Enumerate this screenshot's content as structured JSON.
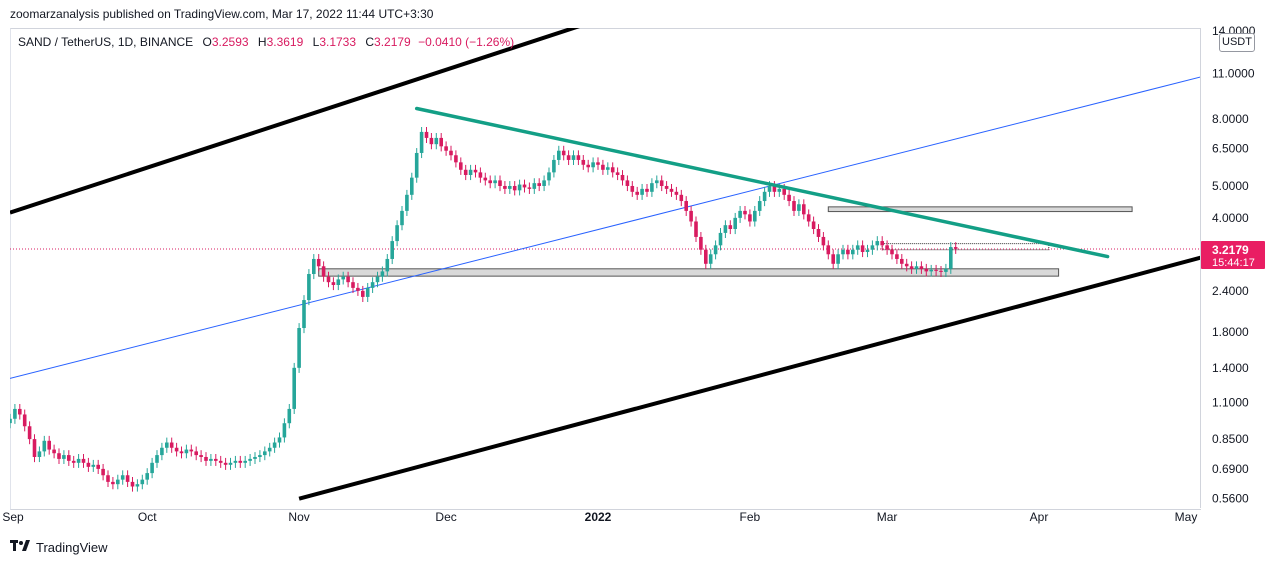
{
  "header": {
    "published_by": "zoomarzanalysis published on TradingView.com, Mar 17, 2022 11:44 UTC+3:30"
  },
  "legend": {
    "symbol": "SAND / TetherUS, 1D, BINANCE",
    "open_label": "O",
    "open": "3.2593",
    "high_label": "H",
    "high": "3.3619",
    "low_label": "L",
    "low": "3.1733",
    "close_label": "C",
    "close": "3.2179",
    "change": "−0.0410 (−1.26%)"
  },
  "price_axis": {
    "currency": "USDT",
    "top_partial_label": "14.0000",
    "ticks": [
      "11.0000",
      "8.0000",
      "6.5000",
      "5.0000",
      "4.0000",
      "2.4000",
      "1.8000",
      "1.4000",
      "1.1000",
      "0.8500",
      "0.6900",
      "0.5600"
    ],
    "current_price": "3.2179",
    "countdown": "15:44:17"
  },
  "footer": {
    "brand": "TradingView"
  },
  "colors": {
    "up": "#26a69a",
    "down": "#d81b60",
    "trendline": "#139f86",
    "channel": "#000000",
    "blue_line": "#2962ff",
    "zone_fill": "#d9d9d9",
    "price_badge": "#e91e63"
  },
  "chart_data": {
    "type": "candlestick",
    "scale": "log",
    "x_ticks": [
      "Sep",
      "Oct",
      "Nov",
      "Dec",
      "2022",
      "Feb",
      "Mar",
      "Apr",
      "May"
    ],
    "y_ticks": [
      11.0,
      8.0,
      6.5,
      5.0,
      4.0,
      2.4,
      1.8,
      1.4,
      1.1,
      0.85,
      0.69,
      0.56
    ],
    "ylim": [
      0.545,
      14.5
    ],
    "series": [
      {
        "start": "2021-09-03",
        "closes": [
          0.98,
          1.05,
          1.01,
          0.93,
          0.85,
          0.75,
          0.78,
          0.84,
          0.79,
          0.77,
          0.74,
          0.76,
          0.73,
          0.72,
          0.74,
          0.72,
          0.7,
          0.71,
          0.69,
          0.66,
          0.63,
          0.62,
          0.64,
          0.66,
          0.63,
          0.61,
          0.62,
          0.64,
          0.67,
          0.72,
          0.76,
          0.8,
          0.83,
          0.8,
          0.78,
          0.77,
          0.79,
          0.78,
          0.76,
          0.75,
          0.73,
          0.74,
          0.73,
          0.72,
          0.71,
          0.72,
          0.73,
          0.72,
          0.73,
          0.74,
          0.75,
          0.76,
          0.78,
          0.8,
          0.83,
          0.86,
          0.95,
          1.05,
          1.4,
          1.85,
          2.25,
          2.7,
          3.0,
          2.85,
          2.65,
          2.55,
          2.5,
          2.6,
          2.65,
          2.55,
          2.45,
          2.4,
          2.3,
          2.45,
          2.55,
          2.65,
          2.75,
          3.0,
          3.4,
          3.8,
          4.2,
          4.7,
          5.3,
          6.3,
          7.3,
          7.0,
          6.7,
          7.0,
          6.6,
          6.4,
          6.2,
          5.9,
          5.6,
          5.4,
          5.6,
          5.5,
          5.3,
          5.2,
          5.1,
          5.2,
          5.0,
          4.9,
          5.0,
          4.85,
          5.05,
          4.95,
          4.9,
          5.1,
          5.0,
          5.2,
          5.5,
          6.0,
          6.4,
          6.2,
          6.0,
          6.2,
          6.0,
          5.8,
          5.7,
          5.9,
          5.8,
          5.6,
          5.7,
          5.5,
          5.4,
          5.2,
          5.0,
          4.8,
          4.7,
          4.9,
          4.8,
          5.1,
          5.2,
          5.0,
          4.9,
          4.8,
          4.7,
          4.5,
          4.2,
          3.9,
          3.5,
          3.2,
          2.9,
          3.1,
          3.3,
          3.6,
          3.8,
          3.7,
          4.0,
          4.2,
          4.1,
          3.9,
          4.2,
          4.5,
          4.8,
          5.0,
          4.8,
          4.9,
          4.7,
          4.5,
          4.2,
          4.4,
          4.1,
          3.9,
          3.7,
          3.5,
          3.3,
          3.1,
          2.9,
          3.1,
          3.2,
          3.1,
          3.2,
          3.3,
          3.15,
          3.2,
          3.3,
          3.4,
          3.3,
          3.2,
          3.1,
          3.0,
          2.9,
          2.85,
          2.8,
          2.85,
          2.8,
          2.75,
          2.78,
          2.76,
          2.74,
          2.8,
          3.26,
          3.22
        ]
      }
    ],
    "annotations": {
      "channel_upper": [
        [
          "2021-09-03",
          4.15
        ],
        [
          "2021-12-31",
          15.8
        ]
      ],
      "channel_lower": [
        [
          "2021-11-01",
          0.56
        ],
        [
          "2022-05-15",
          3.35
        ]
      ],
      "blue_line": [
        [
          "2021-09-03",
          1.3
        ],
        [
          "2022-05-15",
          11.8
        ]
      ],
      "descending_trendline": [
        [
          "2021-11-25",
          8.6
        ],
        [
          "2022-04-15",
          3.05
        ]
      ],
      "support_zone": {
        "from": "2021-11-05",
        "to": "2022-04-05",
        "low": 2.66,
        "high": 2.8
      },
      "resistance_zone": {
        "from": "2022-02-17",
        "to": "2022-04-20",
        "low": 4.18,
        "high": 4.32
      },
      "small_box": {
        "from": "2022-02-28",
        "to": "2022-04-03",
        "low": 3.2,
        "high": 3.34
      }
    }
  }
}
